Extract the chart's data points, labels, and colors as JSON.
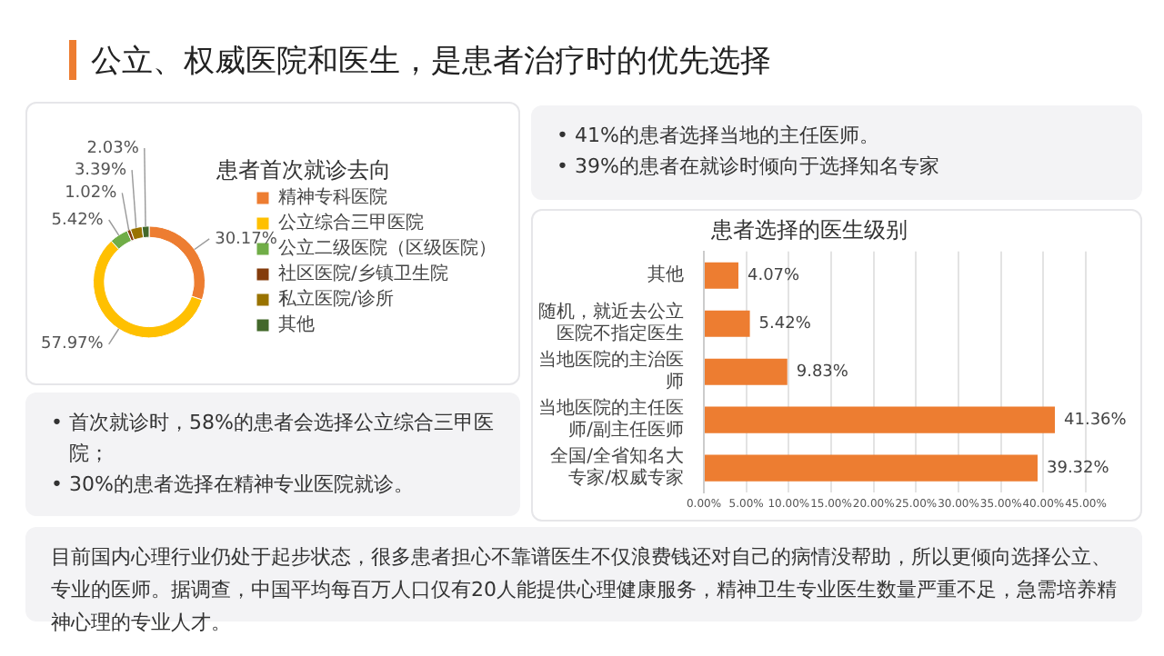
{
  "chart_data": [
    {
      "type": "other",
      "title": "公立、权威医院和医生，是患者治疗时的优先选择",
      "annotations": [
        "目前国内心理行业仍处于起步状态，很多患者担心不靠谱医生不仅浪费钱还对自己的病情没帮助，所以更倾向选择公立、专业的医师。据调查，中国平均每百万人口仅有20人能提供心理健康服务，精神卫生专业医生数量严重不足，急需培养精神心理的专业人才。"
      ]
    },
    {
      "type": "donut",
      "title": "患者首次就诊去向",
      "categories": [
        "精神专科医院",
        "公立综合三甲医院",
        "公立二级医院（区级医院）",
        "社区医院/乡镇卫生院",
        "私立医院/诊所",
        "其他"
      ],
      "values": [
        30.17,
        57.97,
        5.42,
        1.02,
        3.39,
        2.03
      ],
      "value_labels": [
        "30.17%",
        "57.97%",
        "5.42%",
        "1.02%",
        "3.39%",
        "2.03%"
      ],
      "colors": [
        "#ed7d31",
        "#ffc000",
        "#70ad47",
        "#843c0c",
        "#997300",
        "#43682b"
      ],
      "legend": "right",
      "annotations": [
        "• 首次就诊时，58%的患者会选择公立综合三甲医院；",
        "• 30%的患者选择在精神专业医院就诊。"
      ]
    },
    {
      "type": "bar",
      "orientation": "horizontal",
      "title": "患者选择的医生级别",
      "categories": [
        "其他",
        "随机，就近去公立医院不指定医生",
        "当地医院的主治医师",
        "当地医院的主任医师/副主任医师",
        "全国/全省知名大专家/权威专家"
      ],
      "values": [
        4.07,
        5.42,
        9.83,
        41.36,
        39.32
      ],
      "value_labels": [
        "4.07%",
        "5.42%",
        "9.83%",
        "41.36%",
        "39.32%"
      ],
      "color": "#ed7d31",
      "xlim": [
        0,
        45
      ],
      "xticks": [
        {
          "value": 0,
          "label": "0.00%"
        },
        {
          "value": 5,
          "label": "5.00%"
        },
        {
          "value": 10,
          "label": "10.00%"
        },
        {
          "value": 15,
          "label": "15.00%"
        },
        {
          "value": 20,
          "label": "20.00%"
        },
        {
          "value": 25,
          "label": "25.00%"
        },
        {
          "value": 30,
          "label": "30.00%"
        },
        {
          "value": 35,
          "label": "35.00%"
        },
        {
          "value": 40,
          "label": "40.00%"
        },
        {
          "value": 45,
          "label": "45.00%"
        }
      ],
      "grid": "x",
      "annotations": [
        "• 41%的患者选择当地的主任医师。",
        "• 39%的患者在就诊时倾向于选择知名专家"
      ]
    }
  ]
}
